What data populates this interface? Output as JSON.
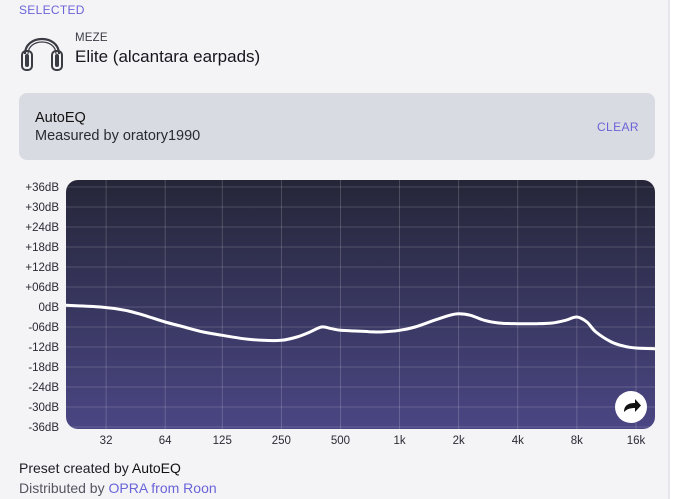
{
  "selected_label": "SELECTED",
  "device": {
    "icon": "headphones-icon",
    "brand": "MEZE",
    "model": "Elite (alcantara earpads)"
  },
  "preset": {
    "title": "AutoEQ",
    "measured_by": "Measured by oratory1990",
    "clear_label": "CLEAR"
  },
  "share_icon": "share-arrow-icon",
  "footer": {
    "created_prefix": "Preset created by",
    "created_by": "AutoEQ",
    "distributed_prefix": "Distributed by",
    "distributed_link": "OPRA from Roon"
  },
  "colors": {
    "accent": "#6a64d8",
    "chart_top": "#252638",
    "chart_bottom": "#4a4684",
    "curve": "#ffffff"
  },
  "chart_data": {
    "type": "line",
    "x_scale": "log",
    "xlim": [
      20,
      20000
    ],
    "ylim": [
      -36,
      36
    ],
    "grid": true,
    "x_ticks": [
      {
        "value": 32,
        "label": "32"
      },
      {
        "value": 64,
        "label": "64"
      },
      {
        "value": 125,
        "label": "125"
      },
      {
        "value": 250,
        "label": "250"
      },
      {
        "value": 500,
        "label": "500"
      },
      {
        "value": 1000,
        "label": "1k"
      },
      {
        "value": 2000,
        "label": "2k"
      },
      {
        "value": 4000,
        "label": "4k"
      },
      {
        "value": 8000,
        "label": "8k"
      },
      {
        "value": 16000,
        "label": "16k"
      }
    ],
    "y_ticks": [
      {
        "value": 36,
        "label": "+36dB"
      },
      {
        "value": 30,
        "label": "+30dB"
      },
      {
        "value": 24,
        "label": "+24dB"
      },
      {
        "value": 18,
        "label": "+18dB"
      },
      {
        "value": 12,
        "label": "+12dB"
      },
      {
        "value": 6,
        "label": "+06dB"
      },
      {
        "value": 0,
        "label": "0dB"
      },
      {
        "value": -6,
        "label": "-06dB"
      },
      {
        "value": -12,
        "label": "-12dB"
      },
      {
        "value": -18,
        "label": "-18dB"
      },
      {
        "value": -24,
        "label": "-24dB"
      },
      {
        "value": -30,
        "label": "-30dB"
      },
      {
        "value": -36,
        "label": "-36dB"
      }
    ],
    "series": [
      {
        "x": [
          20,
          30,
          40,
          50,
          64,
          80,
          100,
          125,
          160,
          200,
          250,
          300,
          350,
          400,
          450,
          500,
          600,
          700,
          800,
          1000,
          1200,
          1500,
          1800,
          2000,
          2300,
          2700,
          3200,
          4000,
          5000,
          6000,
          7000,
          8000,
          9000,
          10000,
          12000,
          14000,
          16000,
          20000
        ],
        "y": [
          0.5,
          0,
          -1,
          -2.5,
          -4.5,
          -6,
          -7.5,
          -8.5,
          -9.5,
          -10,
          -10,
          -9,
          -7.5,
          -6,
          -6.5,
          -7,
          -7.2,
          -7.4,
          -7.5,
          -7,
          -6,
          -4,
          -2.5,
          -2,
          -2.5,
          -4,
          -4.8,
          -5,
          -5,
          -4.8,
          -4,
          -3,
          -4.5,
          -7.5,
          -10.5,
          -11.8,
          -12.3,
          -12.5
        ]
      }
    ]
  }
}
